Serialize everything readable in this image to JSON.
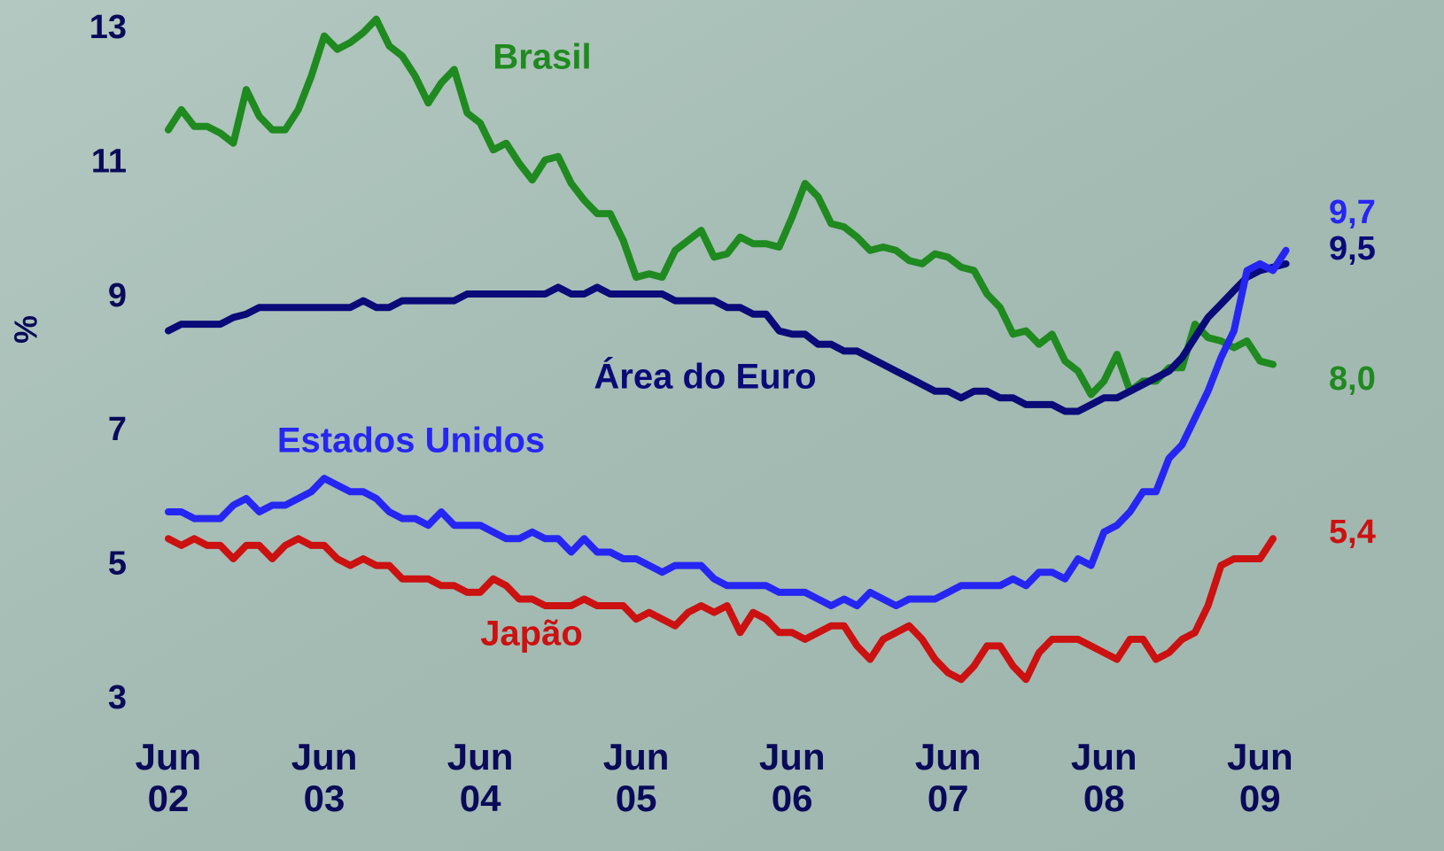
{
  "chart_data": {
    "type": "line",
    "y_label": "%",
    "categories": [
      "Jun 02",
      null,
      null,
      null,
      null,
      null,
      null,
      null,
      null,
      null,
      null,
      null,
      "Jun 03",
      null,
      null,
      null,
      null,
      null,
      null,
      null,
      null,
      null,
      null,
      null,
      "Jun 04",
      null,
      null,
      null,
      null,
      null,
      null,
      null,
      null,
      null,
      null,
      null,
      "Jun 05",
      null,
      null,
      null,
      null,
      null,
      null,
      null,
      null,
      null,
      null,
      null,
      "Jun 06",
      null,
      null,
      null,
      null,
      null,
      null,
      null,
      null,
      null,
      null,
      null,
      "Jun 07",
      null,
      null,
      null,
      null,
      null,
      null,
      null,
      null,
      null,
      null,
      null,
      "Jun 08",
      null,
      null,
      null,
      null,
      null,
      null,
      null,
      null,
      null,
      null,
      null,
      "Jun 09",
      null,
      null
    ],
    "ylim": [
      3,
      13
    ],
    "yticks": [
      3,
      5,
      7,
      9,
      11,
      13
    ],
    "series": [
      {
        "name": "Brasil",
        "color": "#1f8a1f",
        "values": [
          11.5,
          11.8,
          11.55,
          11.55,
          11.45,
          11.3,
          12.1,
          11.7,
          11.5,
          11.5,
          11.8,
          12.3,
          12.9,
          12.7,
          12.8,
          12.95,
          13.15,
          12.75,
          12.6,
          12.3,
          11.9,
          12.2,
          12.4,
          11.75,
          11.6,
          11.2,
          11.3,
          11.0,
          10.75,
          11.05,
          11.1,
          10.7,
          10.45,
          10.25,
          10.25,
          9.85,
          9.3,
          9.35,
          9.3,
          9.7,
          9.85,
          10.0,
          9.6,
          9.65,
          9.9,
          9.8,
          9.8,
          9.75,
          10.2,
          10.7,
          10.5,
          10.1,
          10.05,
          9.9,
          9.7,
          9.75,
          9.7,
          9.55,
          9.5,
          9.65,
          9.6,
          9.45,
          9.4,
          9.05,
          8.85,
          8.45,
          8.5,
          8.3,
          8.45,
          8.05,
          7.9,
          7.55,
          7.75,
          8.15,
          7.6,
          7.75,
          7.75,
          7.95,
          7.95,
          8.6,
          8.4,
          8.35,
          8.25,
          8.35,
          8.05,
          8.0,
          null
        ],
        "value_labels": [
          null,
          null,
          null,
          null,
          null,
          null,
          null,
          null,
          null,
          null,
          null,
          null,
          null,
          null,
          null,
          null,
          null,
          null,
          null,
          null,
          null,
          null,
          null,
          null,
          null,
          null,
          null,
          null,
          null,
          null,
          null,
          null,
          null,
          null,
          null,
          null,
          null,
          null,
          null,
          null,
          null,
          null,
          null,
          null,
          null,
          null,
          null,
          null,
          null,
          null,
          null,
          null,
          null,
          null,
          null,
          null,
          null,
          null,
          null,
          null,
          null,
          null,
          null,
          null,
          null,
          null,
          null,
          null,
          null,
          null,
          null,
          null,
          null,
          null,
          null,
          null,
          null,
          null,
          null,
          null,
          null,
          null,
          null,
          null,
          null,
          "8,0",
          null
        ]
      },
      {
        "name": "Área do Euro",
        "color": "#0a0a78",
        "values": [
          8.5,
          8.6,
          8.6,
          8.6,
          8.6,
          8.7,
          8.75,
          8.85,
          8.85,
          8.85,
          8.85,
          8.85,
          8.85,
          8.85,
          8.85,
          8.95,
          8.85,
          8.85,
          8.95,
          8.95,
          8.95,
          8.95,
          8.95,
          9.05,
          9.05,
          9.05,
          9.05,
          9.05,
          9.05,
          9.05,
          9.15,
          9.05,
          9.05,
          9.15,
          9.05,
          9.05,
          9.05,
          9.05,
          9.05,
          8.95,
          8.95,
          8.95,
          8.95,
          8.85,
          8.85,
          8.75,
          8.75,
          8.5,
          8.45,
          8.45,
          8.3,
          8.3,
          8.2,
          8.2,
          8.1,
          8.0,
          7.9,
          7.8,
          7.7,
          7.6,
          7.6,
          7.5,
          7.6,
          7.6,
          7.5,
          7.5,
          7.4,
          7.4,
          7.4,
          7.3,
          7.3,
          7.4,
          7.5,
          7.5,
          7.6,
          7.7,
          7.8,
          7.9,
          8.1,
          8.4,
          8.7,
          8.9,
          9.1,
          9.3,
          9.4,
          9.45,
          9.5
        ],
        "value_labels": [
          null,
          null,
          null,
          null,
          null,
          null,
          null,
          null,
          null,
          null,
          null,
          null,
          null,
          null,
          null,
          null,
          null,
          null,
          null,
          null,
          null,
          null,
          null,
          null,
          null,
          null,
          null,
          null,
          null,
          null,
          null,
          null,
          null,
          null,
          null,
          null,
          null,
          null,
          null,
          null,
          null,
          null,
          null,
          null,
          null,
          null,
          null,
          null,
          null,
          null,
          null,
          null,
          null,
          null,
          null,
          null,
          null,
          null,
          null,
          null,
          null,
          null,
          null,
          null,
          null,
          null,
          null,
          null,
          null,
          null,
          null,
          null,
          null,
          null,
          null,
          null,
          null,
          null,
          null,
          null,
          null,
          null,
          null,
          null,
          null,
          null,
          "9,5"
        ]
      },
      {
        "name": "Estados Unidos",
        "color": "#2626f2",
        "values": [
          5.8,
          5.8,
          5.7,
          5.7,
          5.7,
          5.9,
          6.0,
          5.8,
          5.9,
          5.9,
          6.0,
          6.1,
          6.3,
          6.2,
          6.1,
          6.1,
          6.0,
          5.8,
          5.7,
          5.7,
          5.6,
          5.8,
          5.6,
          5.6,
          5.6,
          5.5,
          5.4,
          5.4,
          5.5,
          5.4,
          5.4,
          5.2,
          5.4,
          5.2,
          5.2,
          5.1,
          5.1,
          5.0,
          4.9,
          5.0,
          5.0,
          5.0,
          4.8,
          4.7,
          4.7,
          4.7,
          4.7,
          4.6,
          4.6,
          4.6,
          4.5,
          4.4,
          4.5,
          4.4,
          4.6,
          4.5,
          4.4,
          4.5,
          4.5,
          4.5,
          4.6,
          4.7,
          4.7,
          4.7,
          4.7,
          4.8,
          4.7,
          4.9,
          4.9,
          4.8,
          5.1,
          5.0,
          5.5,
          5.6,
          5.8,
          6.1,
          6.1,
          6.6,
          6.8,
          7.2,
          7.6,
          8.1,
          8.5,
          9.4,
          9.5,
          9.4,
          9.7
        ],
        "value_labels": [
          null,
          null,
          null,
          null,
          null,
          null,
          null,
          null,
          null,
          null,
          null,
          null,
          null,
          null,
          null,
          null,
          null,
          null,
          null,
          null,
          null,
          null,
          null,
          null,
          null,
          null,
          null,
          null,
          null,
          null,
          null,
          null,
          null,
          null,
          null,
          null,
          null,
          null,
          null,
          null,
          null,
          null,
          null,
          null,
          null,
          null,
          null,
          null,
          null,
          null,
          null,
          null,
          null,
          null,
          null,
          null,
          null,
          null,
          null,
          null,
          null,
          null,
          null,
          null,
          null,
          null,
          null,
          null,
          null,
          null,
          null,
          null,
          null,
          null,
          null,
          null,
          null,
          null,
          null,
          null,
          null,
          null,
          null,
          null,
          null,
          null,
          "9,7"
        ]
      },
      {
        "name": "Japão",
        "color": "#cc1111",
        "values": [
          5.4,
          5.3,
          5.4,
          5.3,
          5.3,
          5.1,
          5.3,
          5.3,
          5.1,
          5.3,
          5.4,
          5.3,
          5.3,
          5.1,
          5.0,
          5.1,
          5.0,
          5.0,
          4.8,
          4.8,
          4.8,
          4.7,
          4.7,
          4.6,
          4.6,
          4.8,
          4.7,
          4.5,
          4.5,
          4.4,
          4.4,
          4.4,
          4.5,
          4.4,
          4.4,
          4.4,
          4.2,
          4.3,
          4.2,
          4.1,
          4.3,
          4.4,
          4.3,
          4.4,
          4.0,
          4.3,
          4.2,
          4.0,
          4.0,
          3.9,
          4.0,
          4.1,
          4.1,
          3.8,
          3.6,
          3.9,
          4.0,
          4.1,
          3.9,
          3.6,
          3.4,
          3.3,
          3.5,
          3.8,
          3.8,
          3.5,
          3.3,
          3.7,
          3.9,
          3.9,
          3.9,
          3.8,
          3.7,
          3.6,
          3.9,
          3.9,
          3.6,
          3.7,
          3.9,
          4.0,
          4.4,
          5.0,
          5.1,
          5.1,
          5.1,
          5.4,
          null
        ],
        "value_labels": [
          null,
          null,
          null,
          null,
          null,
          null,
          null,
          null,
          null,
          null,
          null,
          null,
          null,
          null,
          null,
          null,
          null,
          null,
          null,
          null,
          null,
          null,
          null,
          null,
          null,
          null,
          null,
          null,
          null,
          null,
          null,
          null,
          null,
          null,
          null,
          null,
          null,
          null,
          null,
          null,
          null,
          null,
          null,
          null,
          null,
          null,
          null,
          null,
          null,
          null,
          null,
          null,
          null,
          null,
          null,
          null,
          null,
          null,
          null,
          null,
          null,
          null,
          null,
          null,
          null,
          null,
          null,
          null,
          null,
          null,
          null,
          null,
          null,
          null,
          null,
          null,
          null,
          null,
          null,
          null,
          null,
          null,
          null,
          null,
          null,
          "5,4",
          null
        ]
      }
    ]
  }
}
